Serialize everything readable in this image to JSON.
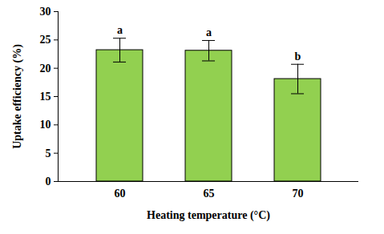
{
  "chart_data": {
    "type": "bar",
    "x_label": "Heating temperature (°C)",
    "y_label": "Uptake efficiency (%)",
    "categories": [
      "60",
      "65",
      "70"
    ],
    "values": [
      23.2,
      23.1,
      18.1
    ],
    "errors": [
      2.1,
      1.8,
      2.6
    ],
    "annotations": [
      "a",
      "a",
      "b"
    ],
    "color": "#92d050",
    "ylim": [
      0,
      30
    ],
    "yticks": [
      0,
      5,
      10,
      15,
      20,
      25,
      30
    ],
    "grid": false
  }
}
